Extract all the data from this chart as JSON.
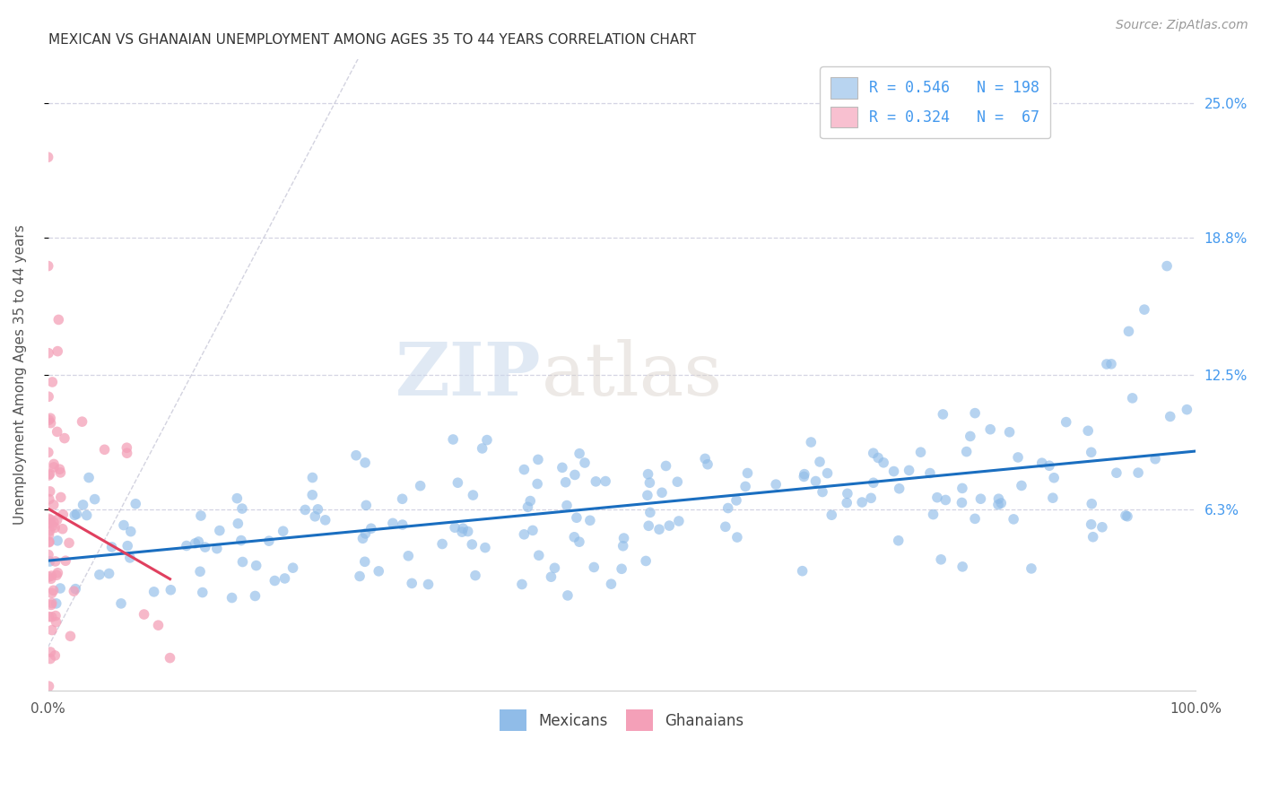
{
  "title": "MEXICAN VS GHANAIAN UNEMPLOYMENT AMONG AGES 35 TO 44 YEARS CORRELATION CHART",
  "source": "Source: ZipAtlas.com",
  "ylabel": "Unemployment Among Ages 35 to 44 years",
  "xlim": [
    0.0,
    1.0
  ],
  "ylim": [
    -0.02,
    0.27
  ],
  "right_ytick_positions": [
    0.063,
    0.125,
    0.188,
    0.25
  ],
  "right_ytick_labels": [
    "6.3%",
    "12.5%",
    "18.8%",
    "25.0%"
  ],
  "watermark_zip": "ZIP",
  "watermark_atlas": "atlas",
  "blue_scatter_color": "#90bce8",
  "pink_scatter_color": "#f4a0b8",
  "blue_line_color": "#1a6ec0",
  "pink_line_color": "#e0405f",
  "diagonal_line_color": "#c8c8d8",
  "grid_color": "#d0d0e0",
  "background_color": "#ffffff",
  "mexican_N": 198,
  "ghanaian_N": 67,
  "legend_label_mexican": "Mexicans",
  "legend_label_ghanaian": "Ghanaians",
  "legend_box_blue_color": "#b8d4f0",
  "legend_box_pink_color": "#f8c0d0"
}
